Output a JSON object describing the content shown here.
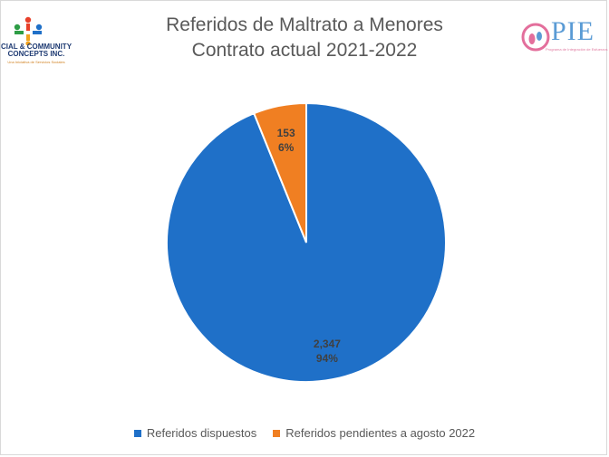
{
  "chart_data": {
    "type": "pie",
    "title_lines": [
      "Referidos de Maltrato a Menores",
      "Contrato actual 2021-2022"
    ],
    "slices": [
      {
        "name": "Referidos dispuestos",
        "value": 2347,
        "value_label": "2,347",
        "percent_label": "94%",
        "color": "#1f70c8"
      },
      {
        "name": "Referidos pendientes a agosto 2022",
        "value": 153,
        "value_label": "153",
        "percent_label": "6%",
        "color": "#f07f22"
      }
    ],
    "legend_position": "bottom"
  },
  "logos": {
    "left": {
      "name": "CIAL & COMMUNITY CONCEPTS INC.",
      "tagline": "Una Iniciativa de Servicios Sociales"
    },
    "right": {
      "name": "PIE",
      "tagline": "Programa de Integración de Esfuerzos"
    }
  },
  "colors": {
    "label_dark": "#404040",
    "title": "#595959"
  }
}
